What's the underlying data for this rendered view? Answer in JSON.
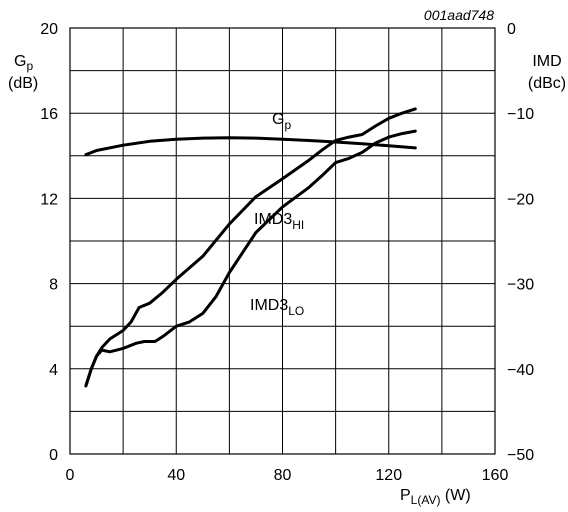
{
  "chart_data": {
    "type": "line",
    "figure_code": "001aad748",
    "x_axis": {
      "label_main": "P",
      "label_sub": "L(AV)",
      "label_unit": " (W)",
      "range": [
        0,
        160
      ],
      "ticks": [
        0,
        40,
        80,
        120,
        160
      ]
    },
    "y_left": {
      "name_main": "G",
      "name_sub": "p",
      "unit": "(dB)",
      "range": [
        0,
        20
      ],
      "ticks": [
        0,
        4,
        8,
        12,
        16,
        20
      ]
    },
    "y_right": {
      "name": "IMD",
      "unit": "(dBc)",
      "range": [
        -50,
        0
      ],
      "ticks": [
        0,
        -10,
        -20,
        -30,
        -40,
        -50
      ],
      "tick_labels": [
        "0",
        "−10",
        "−20",
        "−30",
        "−40",
        "−50"
      ]
    },
    "grid": true,
    "series": [
      {
        "name": "Gp",
        "label_main": "G",
        "label_sub": "p",
        "axis": "left",
        "x": [
          6,
          10,
          20,
          30,
          40,
          50,
          60,
          70,
          80,
          90,
          100,
          110,
          120,
          130
        ],
        "y": [
          14.05,
          14.25,
          14.5,
          14.68,
          14.78,
          14.83,
          14.85,
          14.83,
          14.78,
          14.72,
          14.65,
          14.57,
          14.47,
          14.37
        ]
      },
      {
        "name": "IMD3HI",
        "label_main": "IMD3",
        "label_sub": "HI",
        "axis": "right",
        "x": [
          6,
          8,
          10,
          12,
          15,
          20,
          23,
          26,
          30,
          35,
          40,
          50,
          60,
          70,
          80,
          90,
          95,
          100,
          105,
          110,
          115,
          120,
          125,
          130
        ],
        "y": [
          -42,
          -40,
          -38.5,
          -37.5,
          -36.5,
          -35.5,
          -34.5,
          -32.8,
          -32.3,
          -31,
          -29.5,
          -26.8,
          -23,
          -19.8,
          -17.7,
          -15.5,
          -14.3,
          -13.2,
          -12.8,
          -12.5,
          -11.5,
          -10.6,
          -10,
          -9.5
        ]
      },
      {
        "name": "IMD3LO",
        "label_main": "IMD3",
        "label_sub": "LO",
        "axis": "right",
        "x": [
          6,
          8,
          10,
          12,
          15,
          20,
          25,
          28,
          32,
          35,
          40,
          45,
          50,
          55,
          60,
          70,
          80,
          90,
          95,
          100,
          105,
          110,
          115,
          120,
          125,
          130
        ],
        "y": [
          -42,
          -40,
          -38.5,
          -37.8,
          -38,
          -37.6,
          -37,
          -36.8,
          -36.8,
          -36.2,
          -35,
          -34.5,
          -33.5,
          -31.5,
          -28.7,
          -24,
          -21,
          -18.7,
          -17.3,
          -15.8,
          -15.3,
          -14.6,
          -13.5,
          -12.8,
          -12.4,
          -12.1
        ]
      }
    ]
  }
}
